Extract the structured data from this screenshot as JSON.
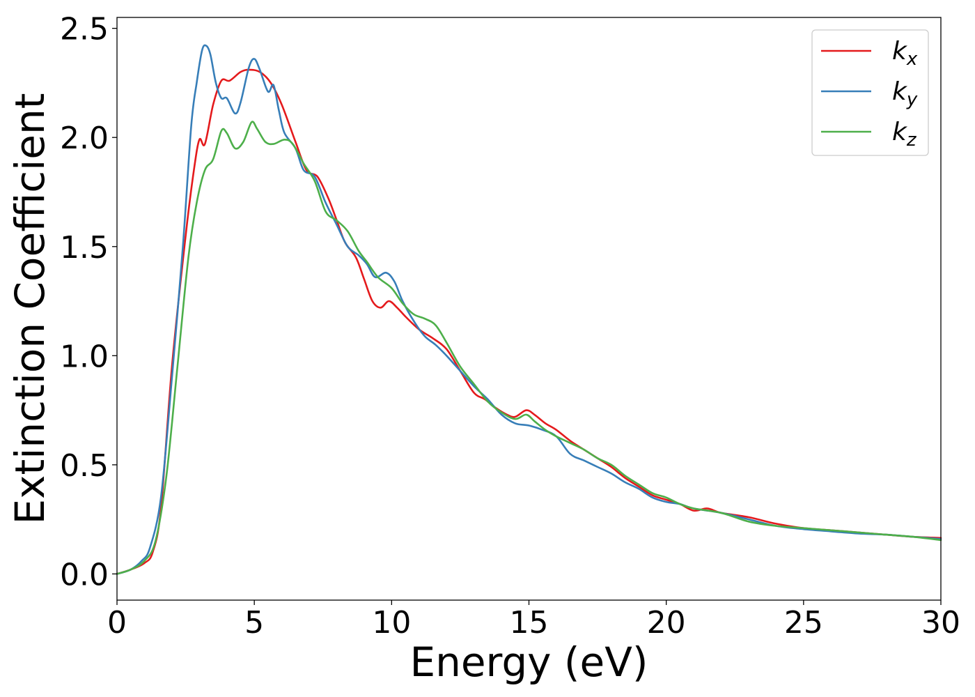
{
  "chart_data": {
    "type": "line",
    "xlabel": "Energy (eV)",
    "ylabel": "Extinction Coefficient",
    "xlim": [
      0,
      30
    ],
    "ylim": [
      -0.12,
      2.55
    ],
    "xticks": [
      0,
      5,
      10,
      15,
      20,
      25,
      30
    ],
    "xtick_labels": [
      "0",
      "5",
      "10",
      "15",
      "20",
      "25",
      "30"
    ],
    "yticks": [
      0.0,
      0.5,
      1.0,
      1.5,
      2.0,
      2.5
    ],
    "ytick_labels": [
      "0.0",
      "0.5",
      "1.0",
      "1.5",
      "2.0",
      "2.5"
    ],
    "grid": false,
    "legend_position": "top-right",
    "series": [
      {
        "name": "k",
        "subscript": "x",
        "color": "#e41a1c",
        "points": [
          [
            0,
            0
          ],
          [
            0.5,
            0.02
          ],
          [
            1.0,
            0.05
          ],
          [
            1.3,
            0.1
          ],
          [
            1.6,
            0.3
          ],
          [
            2.0,
            0.95
          ],
          [
            2.5,
            1.55
          ],
          [
            2.8,
            1.85
          ],
          [
            3.0,
            1.99
          ],
          [
            3.2,
            1.97
          ],
          [
            3.5,
            2.15
          ],
          [
            3.8,
            2.26
          ],
          [
            4.1,
            2.26
          ],
          [
            4.5,
            2.3
          ],
          [
            4.8,
            2.31
          ],
          [
            5.2,
            2.3
          ],
          [
            5.6,
            2.25
          ],
          [
            6.0,
            2.15
          ],
          [
            6.5,
            1.98
          ],
          [
            6.9,
            1.85
          ],
          [
            7.3,
            1.82
          ],
          [
            7.7,
            1.72
          ],
          [
            8.0,
            1.62
          ],
          [
            8.3,
            1.52
          ],
          [
            8.7,
            1.45
          ],
          [
            9.0,
            1.35
          ],
          [
            9.3,
            1.25
          ],
          [
            9.6,
            1.22
          ],
          [
            9.9,
            1.25
          ],
          [
            10.2,
            1.22
          ],
          [
            10.5,
            1.18
          ],
          [
            11.0,
            1.12
          ],
          [
            11.5,
            1.08
          ],
          [
            12.0,
            1.03
          ],
          [
            12.5,
            0.93
          ],
          [
            13.0,
            0.83
          ],
          [
            13.4,
            0.8
          ],
          [
            13.8,
            0.76
          ],
          [
            14.2,
            0.73
          ],
          [
            14.5,
            0.72
          ],
          [
            14.9,
            0.75
          ],
          [
            15.2,
            0.73
          ],
          [
            15.6,
            0.69
          ],
          [
            16.0,
            0.66
          ],
          [
            16.5,
            0.61
          ],
          [
            17.0,
            0.57
          ],
          [
            17.5,
            0.53
          ],
          [
            18.0,
            0.49
          ],
          [
            18.5,
            0.44
          ],
          [
            19.0,
            0.4
          ],
          [
            19.5,
            0.36
          ],
          [
            20.0,
            0.34
          ],
          [
            20.5,
            0.32
          ],
          [
            21.0,
            0.29
          ],
          [
            21.5,
            0.3
          ],
          [
            22.0,
            0.28
          ],
          [
            23.0,
            0.26
          ],
          [
            24.0,
            0.23
          ],
          [
            25.0,
            0.21
          ],
          [
            26.0,
            0.2
          ],
          [
            27.0,
            0.19
          ],
          [
            28.0,
            0.18
          ],
          [
            29.0,
            0.17
          ],
          [
            30.0,
            0.165
          ]
        ]
      },
      {
        "name": "k",
        "subscript": "y",
        "color": "#377eb8",
        "points": [
          [
            0,
            0
          ],
          [
            0.5,
            0.02
          ],
          [
            0.9,
            0.06
          ],
          [
            1.2,
            0.12
          ],
          [
            1.6,
            0.35
          ],
          [
            2.0,
            0.9
          ],
          [
            2.4,
            1.5
          ],
          [
            2.7,
            2.05
          ],
          [
            2.9,
            2.25
          ],
          [
            3.1,
            2.4
          ],
          [
            3.25,
            2.42
          ],
          [
            3.4,
            2.38
          ],
          [
            3.6,
            2.25
          ],
          [
            3.8,
            2.18
          ],
          [
            4.0,
            2.18
          ],
          [
            4.3,
            2.11
          ],
          [
            4.5,
            2.16
          ],
          [
            4.8,
            2.32
          ],
          [
            5.0,
            2.36
          ],
          [
            5.2,
            2.31
          ],
          [
            5.5,
            2.21
          ],
          [
            5.7,
            2.24
          ],
          [
            5.9,
            2.12
          ],
          [
            6.1,
            2.02
          ],
          [
            6.5,
            1.95
          ],
          [
            6.8,
            1.85
          ],
          [
            7.2,
            1.82
          ],
          [
            7.6,
            1.7
          ],
          [
            8.0,
            1.6
          ],
          [
            8.4,
            1.5
          ],
          [
            8.8,
            1.46
          ],
          [
            9.1,
            1.42
          ],
          [
            9.4,
            1.36
          ],
          [
            9.8,
            1.38
          ],
          [
            10.1,
            1.34
          ],
          [
            10.4,
            1.25
          ],
          [
            10.8,
            1.16
          ],
          [
            11.2,
            1.09
          ],
          [
            11.6,
            1.05
          ],
          [
            12.0,
            1.0
          ],
          [
            12.5,
            0.93
          ],
          [
            13.0,
            0.86
          ],
          [
            13.5,
            0.8
          ],
          [
            14.0,
            0.73
          ],
          [
            14.5,
            0.69
          ],
          [
            15.0,
            0.68
          ],
          [
            15.5,
            0.66
          ],
          [
            16.0,
            0.63
          ],
          [
            16.5,
            0.55
          ],
          [
            17.0,
            0.52
          ],
          [
            17.5,
            0.49
          ],
          [
            18.0,
            0.46
          ],
          [
            18.5,
            0.42
          ],
          [
            19.0,
            0.39
          ],
          [
            19.5,
            0.35
          ],
          [
            20.0,
            0.33
          ],
          [
            20.5,
            0.32
          ],
          [
            21.0,
            0.3
          ],
          [
            22.0,
            0.28
          ],
          [
            23.0,
            0.25
          ],
          [
            24.0,
            0.22
          ],
          [
            25.0,
            0.205
          ],
          [
            26.0,
            0.195
          ],
          [
            27.0,
            0.185
          ],
          [
            28.0,
            0.18
          ],
          [
            29.0,
            0.17
          ],
          [
            30.0,
            0.16
          ]
        ]
      },
      {
        "name": "k",
        "subscript": "z",
        "color": "#4daf4a",
        "points": [
          [
            0,
            0
          ],
          [
            0.5,
            0.02
          ],
          [
            1.0,
            0.06
          ],
          [
            1.4,
            0.15
          ],
          [
            1.8,
            0.45
          ],
          [
            2.2,
            0.95
          ],
          [
            2.6,
            1.45
          ],
          [
            2.9,
            1.7
          ],
          [
            3.2,
            1.85
          ],
          [
            3.5,
            1.9
          ],
          [
            3.8,
            2.03
          ],
          [
            4.0,
            2.02
          ],
          [
            4.3,
            1.95
          ],
          [
            4.6,
            1.98
          ],
          [
            4.9,
            2.07
          ],
          [
            5.1,
            2.04
          ],
          [
            5.4,
            1.98
          ],
          [
            5.7,
            1.97
          ],
          [
            6.1,
            1.99
          ],
          [
            6.4,
            1.97
          ],
          [
            6.8,
            1.88
          ],
          [
            7.2,
            1.8
          ],
          [
            7.6,
            1.66
          ],
          [
            8.0,
            1.62
          ],
          [
            8.4,
            1.57
          ],
          [
            8.8,
            1.48
          ],
          [
            9.1,
            1.43
          ],
          [
            9.5,
            1.36
          ],
          [
            10.0,
            1.31
          ],
          [
            10.4,
            1.24
          ],
          [
            10.8,
            1.19
          ],
          [
            11.2,
            1.17
          ],
          [
            11.6,
            1.14
          ],
          [
            12.0,
            1.06
          ],
          [
            12.5,
            0.95
          ],
          [
            13.0,
            0.87
          ],
          [
            13.5,
            0.79
          ],
          [
            14.0,
            0.74
          ],
          [
            14.5,
            0.71
          ],
          [
            14.9,
            0.73
          ],
          [
            15.2,
            0.7
          ],
          [
            15.6,
            0.66
          ],
          [
            16.0,
            0.63
          ],
          [
            16.5,
            0.6
          ],
          [
            17.0,
            0.57
          ],
          [
            17.5,
            0.53
          ],
          [
            18.0,
            0.5
          ],
          [
            18.5,
            0.45
          ],
          [
            19.0,
            0.41
          ],
          [
            19.5,
            0.37
          ],
          [
            20.0,
            0.35
          ],
          [
            20.5,
            0.32
          ],
          [
            21.0,
            0.3
          ],
          [
            22.0,
            0.28
          ],
          [
            23.0,
            0.24
          ],
          [
            24.0,
            0.22
          ],
          [
            25.0,
            0.21
          ],
          [
            26.0,
            0.2
          ],
          [
            27.0,
            0.19
          ],
          [
            28.0,
            0.18
          ],
          [
            29.0,
            0.17
          ],
          [
            30.0,
            0.155
          ]
        ]
      }
    ]
  }
}
